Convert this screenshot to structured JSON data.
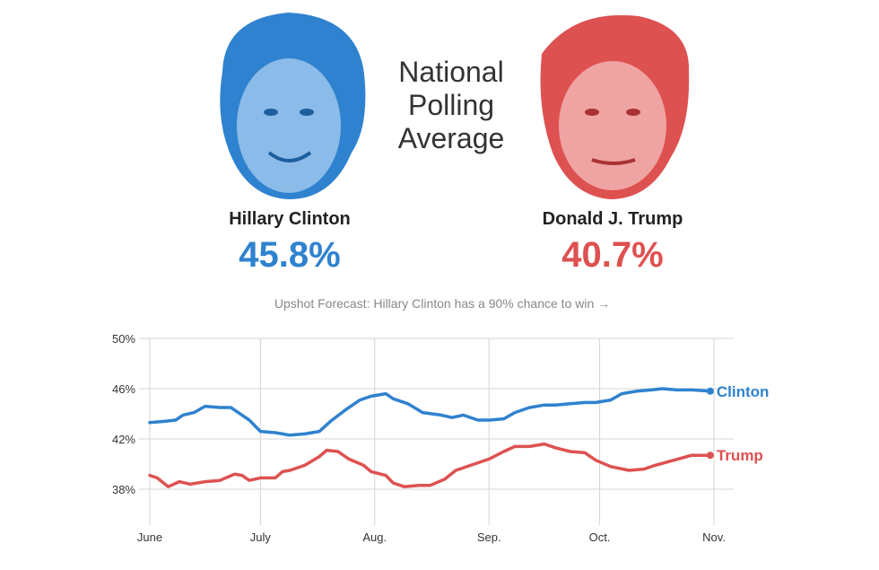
{
  "header": {
    "title_lines": [
      "National",
      "Polling",
      "Average"
    ]
  },
  "candidates": [
    {
      "name": "Hillary Clinton",
      "pct": "45.8%",
      "color": "#2f82cf"
    },
    {
      "name": "Donald J. Trump",
      "pct": "40.7%",
      "color": "#de5151"
    }
  ],
  "forecast_link": "Upshot Forecast: Hillary Clinton has a 90% chance to win →",
  "chart_data": {
    "type": "line",
    "title": "National Polling Average",
    "xlabel": "",
    "ylabel": "",
    "x_unit": "days since June 1",
    "xlim": [
      0,
      153
    ],
    "ylim": [
      35.5,
      50
    ],
    "yticks": [
      {
        "v": 50,
        "label": "50%"
      },
      {
        "v": 46,
        "label": "46%"
      },
      {
        "v": 42,
        "label": "42%"
      },
      {
        "v": 38,
        "label": "38%"
      }
    ],
    "xticks": [
      {
        "v": 0,
        "label": "June"
      },
      {
        "v": 30,
        "label": "July"
      },
      {
        "v": 61,
        "label": "Aug."
      },
      {
        "v": 92,
        "label": "Sep."
      },
      {
        "v": 122,
        "label": "Oct."
      },
      {
        "v": 153,
        "label": "Nov."
      }
    ],
    "grid": true,
    "series": [
      {
        "name": "Clinton",
        "color": "#2f82cf",
        "x": [
          0,
          4,
          7,
          9,
          12,
          15,
          19,
          22,
          25,
          27,
          30,
          34,
          36,
          38,
          42,
          46,
          49,
          53,
          57,
          60,
          64,
          66,
          70,
          74,
          79,
          82,
          85,
          89,
          92,
          96,
          99,
          103,
          107,
          110,
          114,
          118,
          121,
          125,
          128,
          132,
          136,
          139,
          143,
          147,
          152
        ],
        "y": [
          43.3,
          43.4,
          43.5,
          43.9,
          44.1,
          44.6,
          44.5,
          44.5,
          43.9,
          43.5,
          42.6,
          42.5,
          42.4,
          42.3,
          42.4,
          42.6,
          43.4,
          44.3,
          45.1,
          45.4,
          45.6,
          45.2,
          44.8,
          44.1,
          43.9,
          43.7,
          43.9,
          43.5,
          43.5,
          43.6,
          44.1,
          44.5,
          44.7,
          44.7,
          44.8,
          44.9,
          44.9,
          45.1,
          45.6,
          45.8,
          45.9,
          46.0,
          45.9,
          45.9,
          45.8
        ]
      },
      {
        "name": "Trump",
        "color": "#de5151",
        "x": [
          0,
          2,
          5,
          8,
          11,
          15,
          19,
          23,
          25,
          27,
          30,
          34,
          36,
          38,
          42,
          46,
          48,
          51,
          54,
          58,
          60,
          64,
          66,
          69,
          73,
          76,
          80,
          83,
          87,
          92,
          96,
          99,
          103,
          107,
          110,
          114,
          118,
          121,
          125,
          130,
          134,
          137,
          142,
          147,
          152
        ],
        "y": [
          39.1,
          38.9,
          38.2,
          38.6,
          38.4,
          38.6,
          38.7,
          39.2,
          39.1,
          38.7,
          38.9,
          38.9,
          39.4,
          39.5,
          39.9,
          40.6,
          41.1,
          41.0,
          40.4,
          39.9,
          39.4,
          39.1,
          38.5,
          38.2,
          38.3,
          38.3,
          38.8,
          39.5,
          39.9,
          40.4,
          41.0,
          41.4,
          41.4,
          41.6,
          41.3,
          41.0,
          40.9,
          40.3,
          39.8,
          39.5,
          39.6,
          39.9,
          40.3,
          40.7,
          40.7
        ]
      }
    ]
  }
}
